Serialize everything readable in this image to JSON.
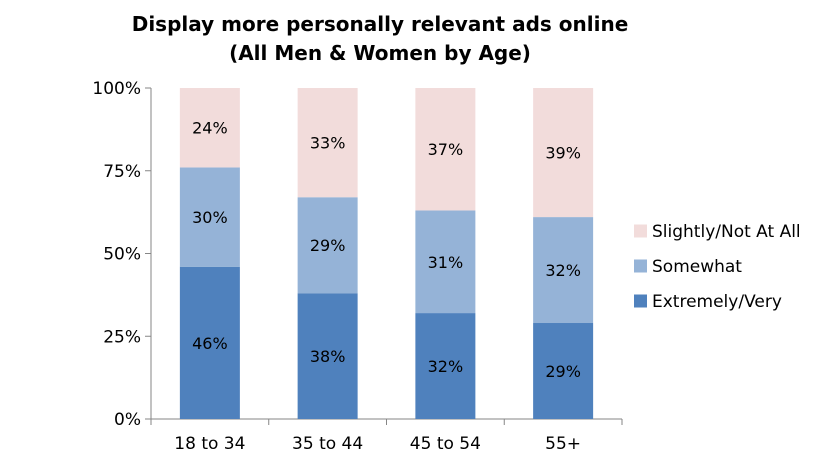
{
  "chart_data": {
    "type": "bar",
    "stacked": true,
    "title": "Display more personally relevant ads online",
    "subtitle": "(All Men & Women by Age)",
    "categories": [
      "18 to 34",
      "35 to 44",
      "45 to 54",
      "55+"
    ],
    "series": [
      {
        "name": "Extremely/Very",
        "values": [
          46,
          38,
          32,
          29
        ],
        "color": "#4F81BD"
      },
      {
        "name": "Somewhat",
        "values": [
          30,
          29,
          31,
          32
        ],
        "color": "#95B3D7"
      },
      {
        "name": "Slightly/Not At All",
        "values": [
          24,
          33,
          37,
          39
        ],
        "color": "#F2DCDB"
      }
    ],
    "data_labels": [
      [
        "46%",
        "38%",
        "32%",
        "29%"
      ],
      [
        "30%",
        "29%",
        "31%",
        "32%"
      ],
      [
        "24%",
        "33%",
        "37%",
        "39%"
      ]
    ],
    "y_ticks": [
      "0%",
      "25%",
      "50%",
      "75%",
      "100%"
    ],
    "ylim": [
      0,
      100
    ],
    "grid": false,
    "legend_position": "right",
    "legend_order": [
      "Slightly/Not At All",
      "Somewhat",
      "Extremely/Very"
    ]
  }
}
